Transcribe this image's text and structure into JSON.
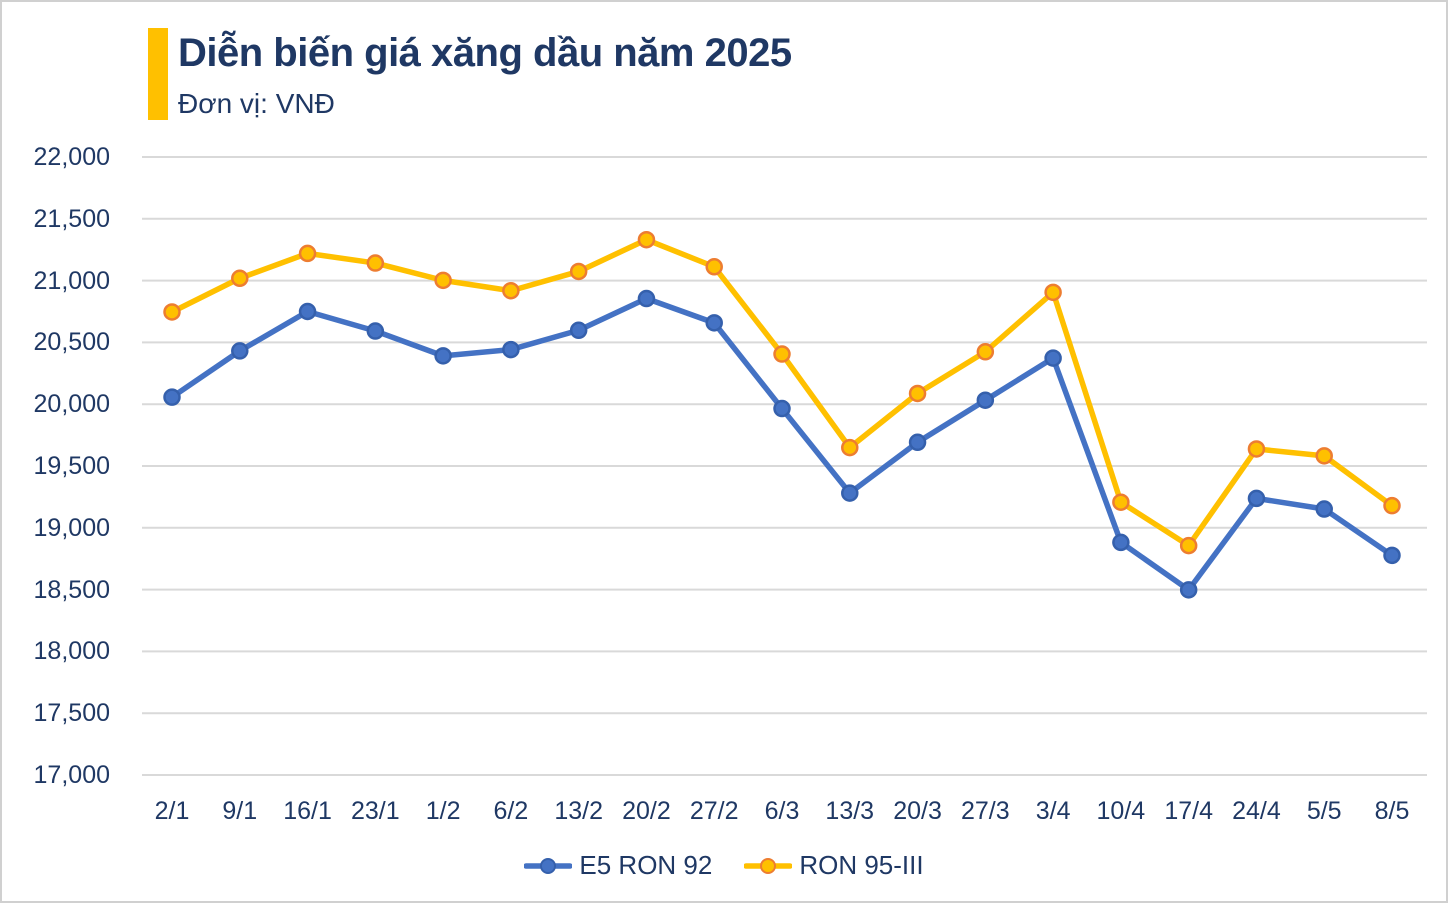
{
  "header": {
    "title": "Diễn biến giá xăng dầu năm 2025",
    "subtitle": "Đơn vị: VNĐ"
  },
  "colors": {
    "accent": "#FFC000",
    "text": "#1F3864",
    "gridline": "#D9D9D9",
    "e5_blue": "#4472C4",
    "e5_marker_stroke": "#3560AC",
    "ron95_gold": "#FFC000",
    "ron95_marker_stroke": "#ED7D31"
  },
  "chart_data": {
    "type": "line",
    "title": "Diễn biến giá xăng dầu năm 2025",
    "unit_label": "Đơn vị: VNĐ",
    "categories": [
      "2/1",
      "9/1",
      "16/1",
      "23/1",
      "1/2",
      "6/2",
      "13/2",
      "20/2",
      "27/2",
      "6/3",
      "13/3",
      "20/3",
      "27/3",
      "3/4",
      "10/4",
      "17/4",
      "24/4",
      "5/5",
      "8/5"
    ],
    "series": [
      {
        "name": "E5 RON 92",
        "color": "#4472C4",
        "marker_stroke": "#3560AC",
        "values": [
          20057,
          20431,
          20750,
          20592,
          20391,
          20442,
          20598,
          20855,
          20658,
          19965,
          19281,
          19692,
          20032,
          20373,
          18882,
          18498,
          19238,
          19152,
          18777
        ]
      },
      {
        "name": "RON 95-III",
        "color": "#FFC000",
        "marker_stroke": "#ED7D31",
        "values": [
          20746,
          21019,
          21220,
          21142,
          21002,
          20918,
          21074,
          21331,
          21112,
          20406,
          19649,
          20087,
          20424,
          20905,
          19207,
          18856,
          19638,
          19582,
          19179
        ]
      }
    ],
    "ylim": [
      17000,
      22000
    ],
    "ytick_step": 500,
    "ytick_labels": [
      "22,000",
      "21,500",
      "21,000",
      "20,500",
      "20,000",
      "19,500",
      "19,000",
      "18,500",
      "18,000",
      "17,500",
      "17,000"
    ],
    "grid": "horizontal",
    "legend_position": "bottom"
  }
}
